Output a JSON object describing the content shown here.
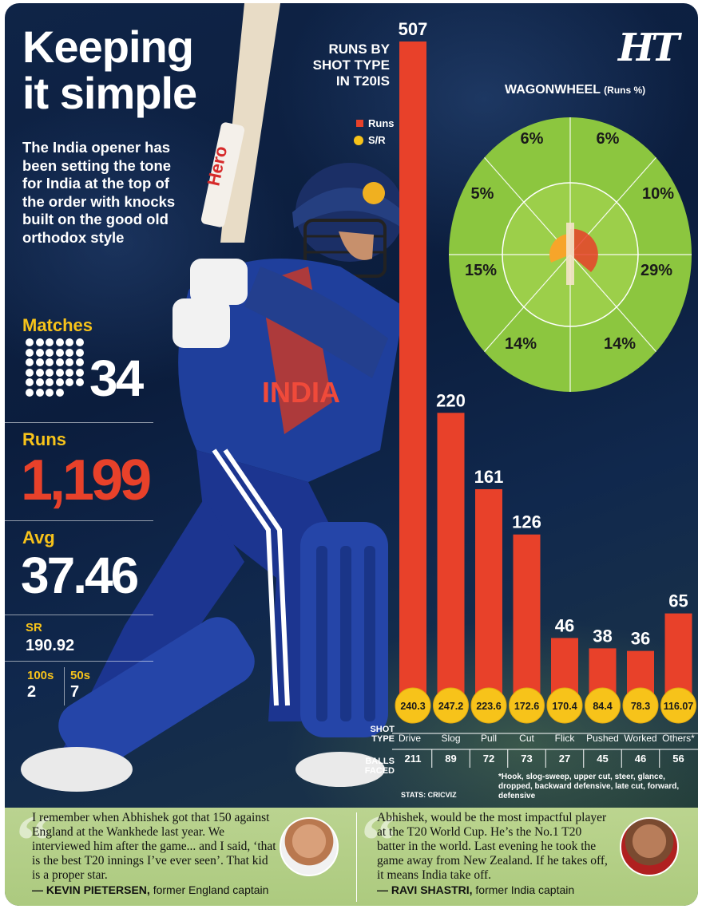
{
  "brand": "HT",
  "headline": {
    "line1": "Keeping",
    "line2": "it simple",
    "intro": "The India opener has been setting the tone for India at the top of the order with knocks built on the good old orthodox style"
  },
  "stats": {
    "matches_label": "Matches",
    "matches_value": "34",
    "runs_label": "Runs",
    "runs_value": "1,199",
    "avg_label": "Avg",
    "avg_value": "37.46",
    "sr_label": "SR",
    "sr_value": "190.92",
    "hundreds_label": "100s",
    "hundreds_value": "2",
    "fifties_label": "50s",
    "fifties_value": "7"
  },
  "colors": {
    "runs_bar": "#e8412a",
    "sr_circle": "#f7c31a",
    "stat_label": "#f7c31a",
    "field_green": "#8cc63f"
  },
  "chart_data": [
    {
      "type": "bar",
      "title": "RUNS BY SHOT TYPE IN T20IS",
      "legend": [
        "Runs",
        "S/R"
      ],
      "xlabel": "SHOT TYPE",
      "row_label": "BALLS FACED",
      "categories": [
        "Drive",
        "Slog",
        "Pull",
        "Cut",
        "Flick",
        "Pushed",
        "Worked",
        "Others*"
      ],
      "series": [
        {
          "name": "Runs",
          "values": [
            507,
            220,
            161,
            126,
            46,
            38,
            36,
            65
          ]
        },
        {
          "name": "S/R",
          "values": [
            "240.3",
            "247.2",
            "223.6",
            "172.6",
            "170.4",
            "84.4",
            "78.3",
            "116.07"
          ]
        }
      ],
      "balls_faced": [
        211,
        89,
        72,
        73,
        27,
        45,
        46,
        56
      ],
      "ylim": [
        0,
        507
      ],
      "footnote": "*Hook, slog-sweep, upper cut, steer, glance, dropped, backward defensive, late cut, forward, defensive",
      "credit": "STATS: CRICVIZ"
    },
    {
      "type": "pie",
      "title": "WAGONWHEEL",
      "subtitle": "(Runs %)",
      "slices": [
        "6%",
        "6%",
        "10%",
        "29%",
        "14%",
        "14%",
        "15%",
        "5%"
      ],
      "values": [
        6,
        6,
        10,
        29,
        14,
        14,
        15,
        5
      ]
    }
  ],
  "quotes": [
    {
      "text": "I remember when Abhishek got that 150 against England at the Wankhede last year. We interviewed him after the game... and I said, ‘that is the best T20 innings I’ve ever seen’. That kid is a proper star.",
      "name": "— KEVIN PIETERSEN,",
      "role": " former England captain"
    },
    {
      "text": "Abhishek, would be the most impactful player at the T20 World Cup. He’s the No.1 T20 batter in the world. Last evening he took the game away from New Zealand. If he takes off, it means India take off.",
      "name": "— RAVI SHASTRI,",
      "role": " former India captain"
    }
  ],
  "player": {
    "jersey_text": "INDIA",
    "bat_text": "Hero"
  }
}
